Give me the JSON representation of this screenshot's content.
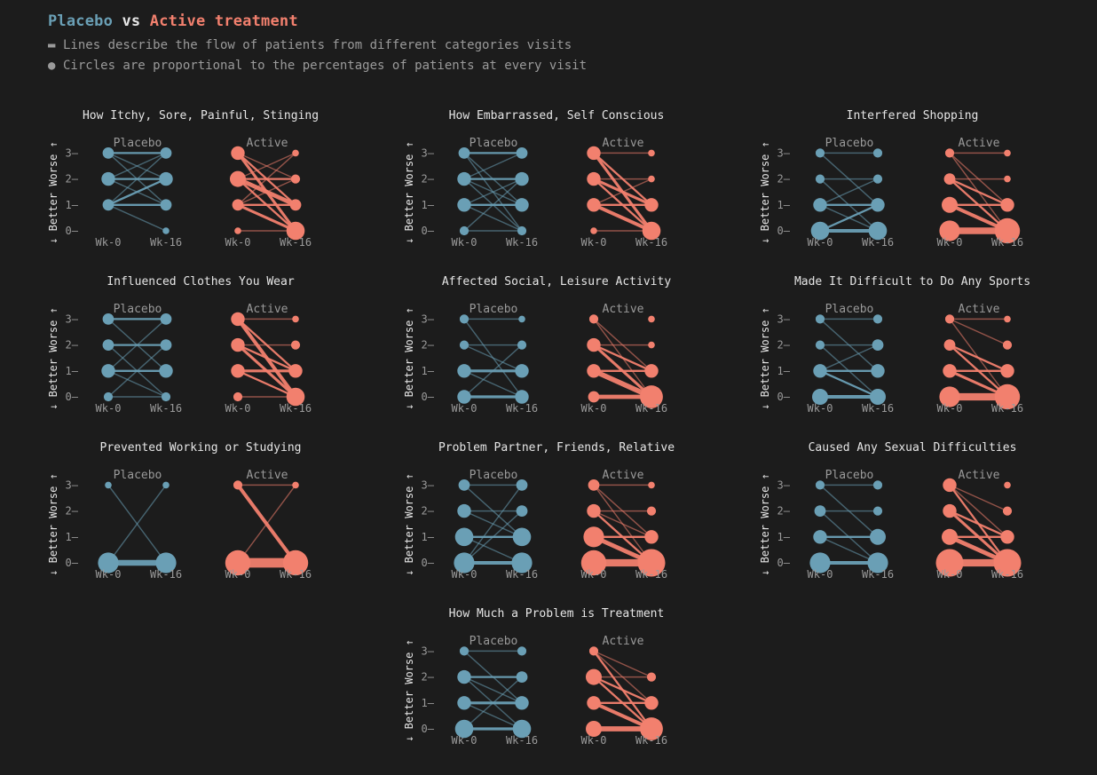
{
  "header": {
    "title_placebo": "Placebo",
    "title_vs": " vs ",
    "title_active": "Active treatment",
    "legend": [
      {
        "marker": "▬",
        "text": "Lines describe the flow of patients from different categories visits"
      },
      {
        "marker": "●",
        "text": "Circles are proportional to the percentages of patients at every visit"
      }
    ]
  },
  "colors": {
    "background": "#1c1c1c",
    "placebo": "#6a9fb5",
    "active": "#f2806e",
    "text": "#9a9a9a",
    "title": "#e6e6e6"
  },
  "chart_data": {
    "type": "slope-flow",
    "group_labels": [
      "Placebo",
      "Active"
    ],
    "x_labels": [
      "Wk-0",
      "Wk-16"
    ],
    "y_ticks": [
      0,
      1,
      2,
      3
    ],
    "y_axis": {
      "top": "Worse",
      "bottom": "Better",
      "top_arrow": "↑",
      "bottom_arrow": "↓"
    },
    "panels": [
      {
        "title": "How Itchy, Sore, Painful, Stinging",
        "placebo": {
          "wk0": [
            0,
            3,
            4,
            3
          ],
          "wk16": [
            1,
            3,
            4,
            3
          ],
          "flows": [
            [
              1,
              0,
              1
            ],
            [
              1,
              1,
              2
            ],
            [
              1,
              2,
              2
            ],
            [
              2,
              1,
              1
            ],
            [
              2,
              2,
              2
            ],
            [
              2,
              3,
              1
            ],
            [
              3,
              2,
              1
            ],
            [
              3,
              3,
              2
            ],
            [
              1,
              3,
              1
            ],
            [
              3,
              1,
              1
            ]
          ]
        },
        "active": {
          "wk0": [
            1,
            3,
            5,
            4
          ],
          "wk16": [
            6,
            3,
            2,
            1
          ],
          "flows": [
            [
              3,
              0,
              3
            ],
            [
              3,
              1,
              2
            ],
            [
              3,
              2,
              1
            ],
            [
              2,
              0,
              2
            ],
            [
              2,
              1,
              5
            ],
            [
              2,
              2,
              2
            ],
            [
              1,
              0,
              3
            ],
            [
              1,
              1,
              2
            ],
            [
              1,
              2,
              1
            ],
            [
              1,
              3,
              1
            ],
            [
              2,
              3,
              1
            ],
            [
              0,
              0,
              1
            ]
          ]
        }
      },
      {
        "title": "How Embarrassed, Self Conscious",
        "placebo": {
          "wk0": [
            2,
            4,
            4,
            3
          ],
          "wk16": [
            2,
            4,
            4,
            3
          ],
          "flows": [
            [
              3,
              3,
              2
            ],
            [
              3,
              1,
              1
            ],
            [
              3,
              0,
              1
            ],
            [
              2,
              2,
              2
            ],
            [
              2,
              3,
              1
            ],
            [
              2,
              1,
              1
            ],
            [
              1,
              1,
              2
            ],
            [
              1,
              2,
              1
            ],
            [
              1,
              0,
              1
            ],
            [
              0,
              0,
              1
            ],
            [
              0,
              2,
              1
            ],
            [
              2,
              0,
              1
            ]
          ]
        },
        "active": {
          "wk0": [
            1,
            4,
            4,
            4
          ],
          "wk16": [
            6,
            4,
            1,
            1
          ],
          "flows": [
            [
              3,
              0,
              3
            ],
            [
              3,
              1,
              2
            ],
            [
              3,
              3,
              1
            ],
            [
              2,
              0,
              2
            ],
            [
              2,
              1,
              3
            ],
            [
              2,
              2,
              1
            ],
            [
              1,
              1,
              2
            ],
            [
              1,
              0,
              4
            ],
            [
              0,
              0,
              1
            ],
            [
              1,
              2,
              1
            ]
          ]
        }
      },
      {
        "title": "Interfered Shopping",
        "placebo": {
          "wk0": [
            6,
            4,
            2,
            2
          ],
          "wk16": [
            6,
            4,
            2,
            2
          ],
          "flows": [
            [
              0,
              0,
              4
            ],
            [
              0,
              1,
              2
            ],
            [
              1,
              0,
              1
            ],
            [
              1,
              1,
              2
            ],
            [
              1,
              2,
              1
            ],
            [
              2,
              2,
              1
            ],
            [
              2,
              0,
              1
            ],
            [
              3,
              3,
              1
            ],
            [
              3,
              1,
              1
            ]
          ]
        },
        "active": {
          "wk0": [
            7,
            5,
            3,
            2
          ],
          "wk16": [
            9,
            4,
            1,
            1
          ],
          "flows": [
            [
              0,
              0,
              8
            ],
            [
              1,
              0,
              4
            ],
            [
              1,
              1,
              2
            ],
            [
              2,
              0,
              2
            ],
            [
              2,
              1,
              2
            ],
            [
              3,
              0,
              1
            ],
            [
              3,
              1,
              1
            ],
            [
              2,
              2,
              1
            ],
            [
              3,
              3,
              1
            ]
          ]
        }
      },
      {
        "title": "Influenced Clothes You Wear",
        "placebo": {
          "wk0": [
            2,
            4,
            3,
            3
          ],
          "wk16": [
            2,
            4,
            3,
            3
          ],
          "flows": [
            [
              3,
              3,
              2
            ],
            [
              3,
              1,
              1
            ],
            [
              2,
              2,
              2
            ],
            [
              2,
              0,
              1
            ],
            [
              1,
              1,
              2
            ],
            [
              1,
              3,
              1
            ],
            [
              0,
              0,
              1
            ],
            [
              0,
              2,
              1
            ],
            [
              1,
              0,
              1
            ]
          ]
        },
        "active": {
          "wk0": [
            2,
            4,
            4,
            4
          ],
          "wk16": [
            6,
            4,
            2,
            1
          ],
          "flows": [
            [
              3,
              0,
              4
            ],
            [
              3,
              1,
              2
            ],
            [
              3,
              3,
              1
            ],
            [
              2,
              0,
              3
            ],
            [
              2,
              1,
              2
            ],
            [
              2,
              2,
              1
            ],
            [
              1,
              0,
              2
            ],
            [
              1,
              1,
              3
            ],
            [
              0,
              0,
              1
            ]
          ]
        }
      },
      {
        "title": "Affected Social, Leisure Activity",
        "placebo": {
          "wk0": [
            4,
            4,
            2,
            2
          ],
          "wk16": [
            4,
            4,
            2,
            1
          ],
          "flows": [
            [
              0,
              0,
              3
            ],
            [
              1,
              1,
              3
            ],
            [
              1,
              0,
              1
            ],
            [
              2,
              1,
              1
            ],
            [
              2,
              2,
              1
            ],
            [
              3,
              0,
              1
            ],
            [
              3,
              3,
              1
            ],
            [
              0,
              2,
              1
            ]
          ]
        },
        "active": {
          "wk0": [
            3,
            4,
            4,
            2
          ],
          "wk16": [
            8,
            4,
            1,
            1
          ],
          "flows": [
            [
              0,
              0,
              5
            ],
            [
              1,
              0,
              6
            ],
            [
              1,
              1,
              2
            ],
            [
              2,
              0,
              3
            ],
            [
              2,
              1,
              2
            ],
            [
              2,
              2,
              1
            ],
            [
              3,
              0,
              1
            ],
            [
              3,
              1,
              1
            ]
          ]
        }
      },
      {
        "title": "Made It Difficult to Do Any Sports",
        "placebo": {
          "wk0": [
            5,
            4,
            2,
            2
          ],
          "wk16": [
            5,
            4,
            3,
            2
          ],
          "flows": [
            [
              0,
              0,
              4
            ],
            [
              1,
              0,
              2
            ],
            [
              1,
              1,
              2
            ],
            [
              1,
              2,
              1
            ],
            [
              2,
              2,
              1
            ],
            [
              3,
              3,
              1
            ],
            [
              3,
              1,
              1
            ],
            [
              2,
              0,
              1
            ]
          ]
        },
        "active": {
          "wk0": [
            7,
            4,
            3,
            2
          ],
          "wk16": [
            9,
            4,
            2,
            1
          ],
          "flows": [
            [
              0,
              0,
              9
            ],
            [
              1,
              0,
              3
            ],
            [
              1,
              1,
              2
            ],
            [
              2,
              0,
              2
            ],
            [
              2,
              1,
              2
            ],
            [
              3,
              0,
              1
            ],
            [
              3,
              2,
              1
            ],
            [
              3,
              3,
              1
            ]
          ]
        }
      },
      {
        "title": "Prevented Working or Studying",
        "placebo": {
          "wk0": [
            7,
            0,
            0,
            1
          ],
          "wk16": [
            7,
            0,
            0,
            1
          ],
          "flows": [
            [
              0,
              0,
              7
            ],
            [
              3,
              0,
              1
            ],
            [
              0,
              3,
              1
            ]
          ]
        },
        "active": {
          "wk0": [
            9,
            0,
            0,
            2
          ],
          "wk16": [
            9,
            0,
            0,
            1
          ],
          "flows": [
            [
              0,
              0,
              12
            ],
            [
              3,
              0,
              4
            ],
            [
              3,
              3,
              1
            ],
            [
              0,
              3,
              1
            ]
          ]
        }
      },
      {
        "title": "Problem Partner, Friends, Relative",
        "placebo": {
          "wk0": [
            7,
            6,
            4,
            3
          ],
          "wk16": [
            7,
            6,
            3,
            3
          ],
          "flows": [
            [
              0,
              0,
              4
            ],
            [
              1,
              1,
              2
            ],
            [
              1,
              0,
              1
            ],
            [
              2,
              2,
              1
            ],
            [
              2,
              1,
              1
            ],
            [
              3,
              3,
              1
            ],
            [
              3,
              1,
              1
            ],
            [
              0,
              2,
              1
            ],
            [
              0,
              3,
              1
            ]
          ]
        },
        "active": {
          "wk0": [
            9,
            7,
            4,
            3
          ],
          "wk16": [
            10,
            4,
            2,
            1
          ],
          "flows": [
            [
              0,
              0,
              9
            ],
            [
              1,
              0,
              5
            ],
            [
              1,
              1,
              2
            ],
            [
              2,
              0,
              2
            ],
            [
              2,
              1,
              1
            ],
            [
              3,
              0,
              1
            ],
            [
              3,
              1,
              1
            ],
            [
              2,
              2,
              1
            ],
            [
              3,
              3,
              1
            ]
          ]
        }
      },
      {
        "title": "Caused Any Sexual Difficulties",
        "placebo": {
          "wk0": [
            7,
            4,
            3,
            2
          ],
          "wk16": [
            7,
            5,
            2,
            2
          ],
          "flows": [
            [
              0,
              0,
              4
            ],
            [
              1,
              1,
              2
            ],
            [
              1,
              0,
              1
            ],
            [
              2,
              2,
              1
            ],
            [
              2,
              0,
              1
            ],
            [
              3,
              1,
              1
            ],
            [
              3,
              3,
              1
            ]
          ]
        },
        "active": {
          "wk0": [
            10,
            5,
            4,
            4
          ],
          "wk16": [
            10,
            4,
            2,
            1
          ],
          "flows": [
            [
              0,
              0,
              9
            ],
            [
              1,
              0,
              5
            ],
            [
              1,
              1,
              2
            ],
            [
              2,
              0,
              3
            ],
            [
              2,
              1,
              2
            ],
            [
              3,
              0,
              2
            ],
            [
              3,
              1,
              1
            ],
            [
              3,
              2,
              1
            ]
          ]
        }
      },
      {
        "title": "How Much a Problem is Treatment",
        "placebo": {
          "wk0": [
            6,
            4,
            4,
            2
          ],
          "wk16": [
            6,
            4,
            3,
            2
          ],
          "flows": [
            [
              0,
              0,
              3
            ],
            [
              1,
              1,
              3
            ],
            [
              1,
              0,
              1
            ],
            [
              2,
              2,
              2
            ],
            [
              2,
              1,
              1
            ],
            [
              3,
              3,
              1
            ],
            [
              3,
              1,
              1
            ],
            [
              0,
              2,
              1
            ],
            [
              2,
              0,
              1
            ]
          ]
        },
        "active": {
          "wk0": [
            5,
            4,
            5,
            2
          ],
          "wk16": [
            8,
            4,
            2,
            0
          ],
          "flows": [
            [
              0,
              0,
              6
            ],
            [
              1,
              0,
              4
            ],
            [
              1,
              1,
              2
            ],
            [
              2,
              0,
              2
            ],
            [
              2,
              1,
              2
            ],
            [
              3,
              0,
              2
            ],
            [
              3,
              1,
              1
            ],
            [
              3,
              2,
              1
            ],
            [
              2,
              2,
              1
            ]
          ]
        }
      }
    ]
  }
}
